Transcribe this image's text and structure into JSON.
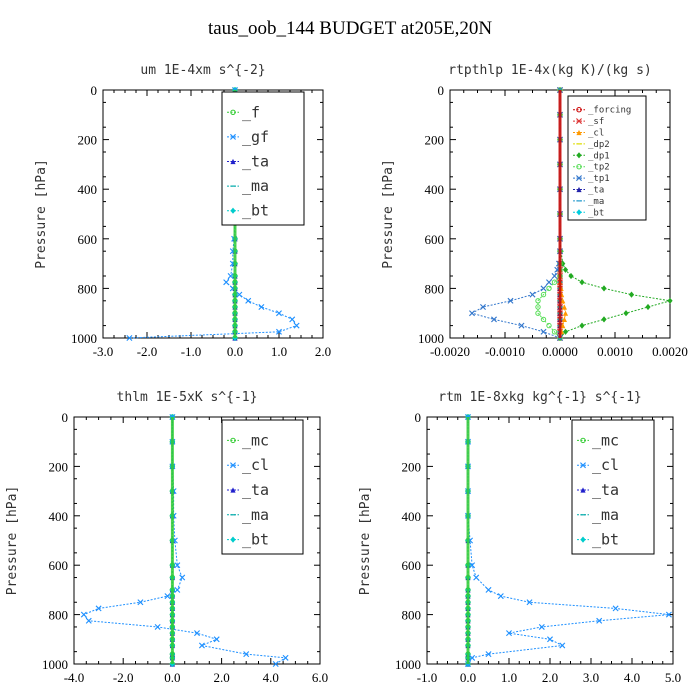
{
  "figure_title": "taus_oob_144  BUDGET at205E,20N",
  "colors": {
    "f": "#33cc33",
    "gf": "#1e90ff",
    "ta": "#2020cc",
    "ma": "#00aaaa",
    "bt": "#00cccc",
    "mc": "#33cc33",
    "cl": "#1e90ff",
    "forcing": "#cc0000",
    "sf": "#dd3333",
    "cl_small": "#ff9900",
    "dp2": "#dddd00",
    "dp1": "#22aa22",
    "tp2": "#55dd55",
    "tp1": "#3377cc",
    "ta_small": "#2222aa",
    "ma_small": "#2299cc",
    "bt_small": "#00ccdd"
  },
  "chart_data": [
    {
      "type": "line",
      "title": "um  1E-4xm s^{-2}",
      "ylabel": "Pressure [hPa]",
      "xlim": [
        -3.0,
        2.0
      ],
      "ylim": [
        1000,
        0
      ],
      "xticks": [
        "-3.0",
        "-2.0",
        "-1.0",
        "0.0",
        "1.0",
        "2.0"
      ],
      "xtick_values": [
        -3,
        -2,
        -1,
        0,
        1,
        2
      ],
      "yticks": [
        "0",
        "200",
        "400",
        "600",
        "800",
        "1000"
      ],
      "ytick_values": [
        0,
        200,
        400,
        600,
        800,
        1000
      ],
      "legend_position": "top-right",
      "pressure": [
        1000,
        975,
        950,
        925,
        900,
        875,
        850,
        825,
        800,
        775,
        750,
        700,
        650,
        600,
        500,
        400,
        300,
        200,
        100,
        0
      ],
      "series": [
        {
          "name": "_f",
          "values": [
            0.0,
            0.0,
            0.0,
            0.0,
            0.0,
            0.0,
            0.0,
            0.0,
            0.0,
            0.0,
            0.0,
            0.0,
            0.0,
            0.0,
            0.0,
            0.0,
            0.0,
            0.0,
            0.0,
            0.0
          ]
        },
        {
          "name": "_gf",
          "values": [
            -2.4,
            1.0,
            1.4,
            1.3,
            1.0,
            0.6,
            0.3,
            0.1,
            -0.05,
            -0.2,
            -0.1,
            -0.05,
            -0.05,
            -0.02,
            0.0,
            0.0,
            0.0,
            0.0,
            0.0,
            0.0
          ]
        },
        {
          "name": "_ta",
          "values": [
            0.0,
            0.0,
            0.0,
            0.0,
            0.0,
            0.0,
            0.0,
            0.0,
            0.0,
            0.0,
            0.0,
            0.0,
            0.0,
            0.0,
            0.0,
            0.0,
            0.0,
            0.0,
            0.0,
            0.0
          ]
        },
        {
          "name": "_ma",
          "values": [
            0.0,
            0.0,
            0.0,
            0.0,
            0.0,
            0.0,
            0.0,
            0.0,
            0.0,
            0.0,
            0.0,
            0.0,
            0.0,
            0.0,
            0.0,
            0.0,
            0.0,
            0.0,
            0.0,
            0.0
          ]
        },
        {
          "name": "_bt",
          "values": [
            0.0,
            0.0,
            0.0,
            0.0,
            0.0,
            0.0,
            0.0,
            0.0,
            0.0,
            0.0,
            0.0,
            0.0,
            0.0,
            0.0,
            0.0,
            0.0,
            0.0,
            0.0,
            0.0,
            0.0
          ]
        }
      ]
    },
    {
      "type": "line",
      "title": "rtpthlp  1E-4x(kg K)/(kg s)",
      "ylabel": "Pressure [hPa]",
      "xlim": [
        -0.002,
        0.002
      ],
      "ylim": [
        1000,
        0
      ],
      "xticks": [
        "-0.0020",
        "-0.0010",
        "0.0000",
        "0.0010",
        "0.0020"
      ],
      "xtick_values": [
        -0.002,
        -0.001,
        0,
        0.001,
        0.002
      ],
      "yticks": [
        "0",
        "200",
        "400",
        "600",
        "800",
        "1000"
      ],
      "ytick_values": [
        0,
        200,
        400,
        600,
        800,
        1000
      ],
      "legend_position": "top-right",
      "pressure": [
        1000,
        975,
        950,
        925,
        900,
        875,
        850,
        825,
        800,
        775,
        750,
        725,
        700,
        650,
        600,
        500,
        400,
        300,
        200,
        100,
        0
      ],
      "series": [
        {
          "name": "_forcing",
          "values": [
            0,
            0,
            0,
            0,
            0,
            0,
            0,
            0,
            0,
            0,
            0,
            0,
            0,
            0,
            0,
            0,
            0,
            0,
            0,
            0,
            0
          ]
        },
        {
          "name": "_sf",
          "values": [
            0,
            0,
            0,
            0,
            0,
            0,
            0,
            0,
            0,
            0,
            0,
            0,
            0,
            0,
            0,
            0,
            0,
            0,
            0,
            0,
            0
          ]
        },
        {
          "name": "_cl",
          "values": [
            0,
            3e-05,
            5e-05,
            8e-05,
            0.0001,
            8e-05,
            5e-05,
            3e-05,
            2e-05,
            0,
            0,
            0,
            0,
            0,
            0,
            0,
            0,
            0,
            0,
            0,
            0
          ]
        },
        {
          "name": "_dp2",
          "values": [
            0,
            0,
            0,
            0,
            0,
            0,
            0,
            0,
            0,
            0,
            0,
            0,
            0,
            0,
            0,
            0,
            0,
            0,
            0,
            0,
            0
          ]
        },
        {
          "name": "_dp1",
          "values": [
            0,
            0.0001,
            0.0004,
            0.0008,
            0.0012,
            0.0016,
            0.002,
            0.0013,
            0.0008,
            0.0004,
            0.0002,
            0.0001,
            5e-05,
            2e-05,
            0,
            0,
            0,
            0,
            0,
            0,
            0
          ]
        },
        {
          "name": "_tp2",
          "values": [
            0,
            -0.0001,
            -0.0002,
            -0.0003,
            -0.0004,
            -0.0004,
            -0.0004,
            -0.0003,
            -0.0002,
            -0.0001,
            0,
            0,
            0,
            0,
            0,
            0,
            0,
            0,
            0,
            0,
            0
          ]
        },
        {
          "name": "_tp1",
          "values": [
            0,
            -0.0003,
            -0.0007,
            -0.0012,
            -0.0016,
            -0.0014,
            -0.0009,
            -0.0005,
            -0.0003,
            -0.0002,
            -0.0001,
            -5e-05,
            -2e-05,
            0,
            0,
            0,
            0,
            0,
            0,
            0,
            0
          ]
        },
        {
          "name": "_ta",
          "values": [
            0,
            0,
            0,
            0,
            0,
            0,
            0,
            0,
            0,
            0,
            0,
            0,
            0,
            0,
            0,
            0,
            0,
            0,
            0,
            0,
            0
          ]
        },
        {
          "name": "_ma",
          "values": [
            0,
            0,
            0,
            0,
            0,
            0,
            0,
            0,
            0,
            0,
            0,
            0,
            0,
            0,
            0,
            0,
            0,
            0,
            0,
            0,
            0
          ]
        },
        {
          "name": "_bt",
          "values": [
            0,
            0,
            0,
            0,
            0,
            0,
            0,
            0,
            0,
            0,
            0,
            0,
            0,
            0,
            0,
            0,
            0,
            0,
            0,
            0,
            0
          ]
        }
      ]
    },
    {
      "type": "line",
      "title": "thlm  1E-5xK s^{-1}",
      "ylabel": "Pressure [hPa]",
      "xlim": [
        -4.0,
        6.0
      ],
      "ylim": [
        1000,
        0
      ],
      "xticks": [
        "-4.0",
        "-2.0",
        "0.0",
        "2.0",
        "4.0",
        "6.0"
      ],
      "xtick_values": [
        -4,
        -2,
        0,
        2,
        4,
        6
      ],
      "yticks": [
        "0",
        "200",
        "400",
        "600",
        "800",
        "1000"
      ],
      "ytick_values": [
        0,
        200,
        400,
        600,
        800,
        1000
      ],
      "legend_position": "top-right",
      "pressure": [
        1000,
        975,
        960,
        925,
        900,
        875,
        850,
        825,
        800,
        775,
        750,
        725,
        700,
        650,
        600,
        500,
        400,
        300,
        200,
        100,
        0
      ],
      "series": [
        {
          "name": "_mc",
          "values": [
            0,
            0,
            0,
            0,
            0,
            0,
            0,
            0,
            0,
            0,
            0,
            0,
            0,
            0,
            0,
            0,
            0,
            0,
            0,
            0,
            0
          ]
        },
        {
          "name": "_cl",
          "values": [
            4.2,
            4.6,
            3.0,
            1.2,
            1.8,
            1.0,
            -0.6,
            -3.4,
            -3.6,
            -3.0,
            -1.3,
            -0.2,
            0.2,
            0.4,
            0.2,
            0.1,
            0.05,
            0.05,
            0.0,
            0.0,
            0.0
          ]
        },
        {
          "name": "_ta",
          "values": [
            0,
            0,
            0,
            0,
            0,
            0,
            0,
            0,
            0,
            0,
            0,
            0,
            0,
            0,
            0,
            0,
            0,
            0,
            0,
            0,
            0
          ]
        },
        {
          "name": "_ma",
          "values": [
            0,
            0,
            0,
            0,
            0,
            0,
            0,
            0,
            0,
            0,
            0,
            0,
            0,
            0,
            0,
            0,
            0,
            0,
            0,
            0,
            0
          ]
        },
        {
          "name": "_bt",
          "values": [
            0,
            0,
            0,
            0,
            0,
            0,
            0,
            0,
            0,
            0,
            0,
            0,
            0,
            0,
            0,
            0,
            0,
            0,
            0,
            0,
            0
          ]
        }
      ]
    },
    {
      "type": "line",
      "title": "rtm  1E-8xkg kg^{-1} s^{-1}",
      "ylabel": "Pressure [hPa]",
      "xlim": [
        -1.0,
        5.0
      ],
      "ylim": [
        1000,
        0
      ],
      "xticks": [
        "-1.0",
        "0.0",
        "1.0",
        "2.0",
        "3.0",
        "4.0",
        "5.0"
      ],
      "xtick_values": [
        -1,
        0,
        1,
        2,
        3,
        4,
        5
      ],
      "yticks": [
        "0",
        "200",
        "400",
        "600",
        "800",
        "1000"
      ],
      "ytick_values": [
        0,
        200,
        400,
        600,
        800,
        1000
      ],
      "legend_position": "top-right",
      "pressure": [
        1000,
        975,
        960,
        925,
        900,
        875,
        850,
        825,
        800,
        775,
        750,
        725,
        700,
        650,
        600,
        500,
        400,
        300,
        200,
        100,
        0
      ],
      "series": [
        {
          "name": "_mc",
          "values": [
            0,
            0,
            0,
            0,
            0,
            0,
            0,
            0,
            0,
            0,
            0,
            0,
            0,
            0,
            0,
            0,
            0,
            0,
            0,
            0,
            0
          ]
        },
        {
          "name": "_cl",
          "values": [
            0.0,
            0.1,
            0.5,
            2.3,
            2.0,
            1.0,
            1.8,
            3.2,
            4.9,
            3.6,
            1.5,
            0.8,
            0.5,
            0.2,
            0.1,
            0.05,
            0.0,
            0.0,
            0.0,
            0.0,
            0.0
          ]
        },
        {
          "name": "_ta",
          "values": [
            0,
            0,
            0,
            0,
            0,
            0,
            0,
            0,
            0,
            0,
            0,
            0,
            0,
            0,
            0,
            0,
            0,
            0,
            0,
            0,
            0
          ]
        },
        {
          "name": "_ma",
          "values": [
            0,
            0,
            0,
            0,
            0,
            0,
            0,
            0,
            0,
            0,
            0,
            0,
            0,
            0,
            0,
            0,
            0,
            0,
            0,
            0,
            0
          ]
        },
        {
          "name": "_bt",
          "values": [
            0,
            0,
            0,
            0,
            0,
            0,
            0,
            0,
            0,
            0,
            0,
            0,
            0,
            0,
            0,
            0,
            0,
            0,
            0,
            0,
            0
          ]
        }
      ]
    }
  ]
}
